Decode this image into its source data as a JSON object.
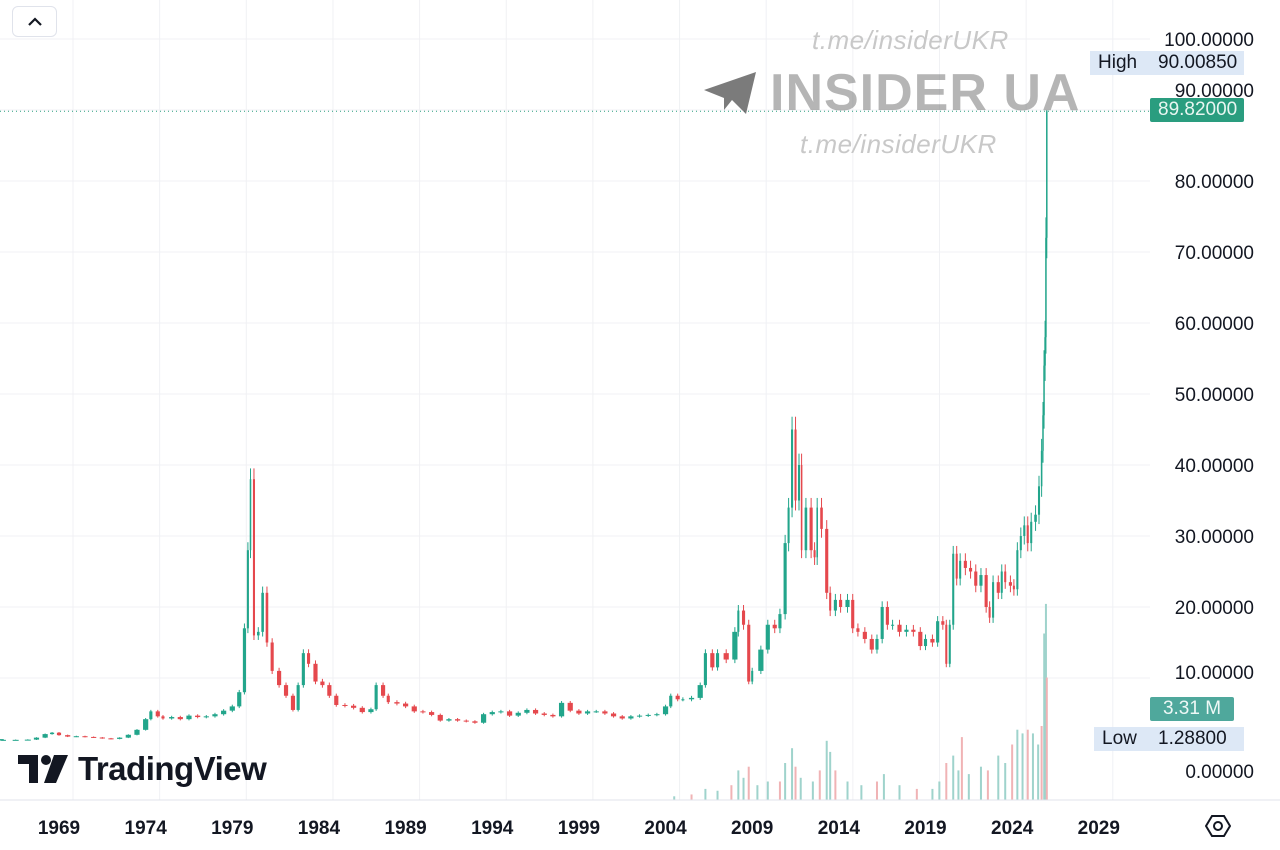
{
  "header": {
    "collapse_button": "collapse-up"
  },
  "watermark": {
    "url_top": "t.me/insiderUKR",
    "brand": "INSIDER UA",
    "url_bottom": "t.me/insiderUKR",
    "icon": "telegram-plane-icon"
  },
  "logo": {
    "text": "TradingView"
  },
  "price_scale_labels": {
    "high_label": "High",
    "high_value": "90.00850",
    "last_price": "89.82000",
    "volume_value": "3.31 M",
    "low_label": "Low",
    "low_value": "1.28800"
  },
  "colors": {
    "up": "#22a58b",
    "down": "#e5484d",
    "last_price_bg": "#2a9d7f",
    "volume_bg": "#4fa89c",
    "grid": "#f0f1f4",
    "volume_up": "#9fd3cc",
    "volume_down": "#f0b3b5"
  },
  "chart_data": {
    "type": "candlestick",
    "title": "",
    "xlabel": "",
    "ylabel": "",
    "x_ticks": [
      "1969",
      "1974",
      "1979",
      "1984",
      "1989",
      "1994",
      "1999",
      "2004",
      "2009",
      "2014",
      "2019",
      "2024",
      "2029"
    ],
    "y_ticks": [
      "100.00000",
      "90.00000",
      "80.00000",
      "70.00000",
      "60.00000",
      "50.00000",
      "40.00000",
      "30.00000",
      "20.00000",
      "10.00000",
      "0.00000"
    ],
    "y_tick_values": [
      100,
      90,
      80,
      70,
      60,
      50,
      40,
      30,
      20,
      10,
      0
    ],
    "xlim": [
      1965.6,
      2031.5
    ],
    "ylim": [
      -7.4,
      105.5
    ],
    "grid": true,
    "high": 90.0085,
    "low": 1.288,
    "last": 89.82,
    "series_close": [
      [
        1965.8,
        1.29
      ],
      [
        1966.5,
        1.29
      ],
      [
        1967.2,
        1.32
      ],
      [
        1967.7,
        1.6
      ],
      [
        1968.2,
        2.1
      ],
      [
        1968.6,
        2.3
      ],
      [
        1969.0,
        1.95
      ],
      [
        1969.5,
        1.75
      ],
      [
        1970.0,
        1.8
      ],
      [
        1970.5,
        1.7
      ],
      [
        1971.0,
        1.62
      ],
      [
        1971.5,
        1.5
      ],
      [
        1972.0,
        1.42
      ],
      [
        1972.5,
        1.6
      ],
      [
        1973.0,
        2.0
      ],
      [
        1973.5,
        2.7
      ],
      [
        1974.0,
        4.2
      ],
      [
        1974.3,
        5.3
      ],
      [
        1974.7,
        4.6
      ],
      [
        1975.0,
        4.3
      ],
      [
        1975.5,
        4.5
      ],
      [
        1976.0,
        4.2
      ],
      [
        1976.5,
        4.7
      ],
      [
        1977.0,
        4.5
      ],
      [
        1977.5,
        4.6
      ],
      [
        1978.0,
        4.9
      ],
      [
        1978.5,
        5.4
      ],
      [
        1979.0,
        6.0
      ],
      [
        1979.4,
        8.0
      ],
      [
        1979.7,
        17.0
      ],
      [
        1979.9,
        28.0
      ],
      [
        1980.05,
        38.0
      ],
      [
        1980.25,
        16.0
      ],
      [
        1980.5,
        16.5
      ],
      [
        1980.75,
        22.0
      ],
      [
        1981.0,
        15.0
      ],
      [
        1981.3,
        11.0
      ],
      [
        1981.7,
        9.0
      ],
      [
        1982.1,
        7.5
      ],
      [
        1982.5,
        5.5
      ],
      [
        1982.8,
        9.0
      ],
      [
        1983.1,
        13.5
      ],
      [
        1983.4,
        12.0
      ],
      [
        1983.8,
        9.5
      ],
      [
        1984.2,
        9.0
      ],
      [
        1984.6,
        7.5
      ],
      [
        1985.0,
        6.2
      ],
      [
        1985.5,
        6.1
      ],
      [
        1986.0,
        5.8
      ],
      [
        1986.5,
        5.2
      ],
      [
        1987.0,
        5.6
      ],
      [
        1987.3,
        9.0
      ],
      [
        1987.7,
        7.5
      ],
      [
        1988.0,
        6.6
      ],
      [
        1988.5,
        6.4
      ],
      [
        1989.0,
        6.0
      ],
      [
        1989.5,
        5.3
      ],
      [
        1990.0,
        5.2
      ],
      [
        1990.5,
        4.8
      ],
      [
        1991.0,
        4.0
      ],
      [
        1991.5,
        4.2
      ],
      [
        1992.0,
        4.0
      ],
      [
        1992.5,
        3.9
      ],
      [
        1993.0,
        3.7
      ],
      [
        1993.5,
        4.9
      ],
      [
        1994.0,
        5.2
      ],
      [
        1994.5,
        5.3
      ],
      [
        1995.0,
        4.7
      ],
      [
        1995.5,
        5.1
      ],
      [
        1996.0,
        5.5
      ],
      [
        1996.5,
        5.0
      ],
      [
        1997.0,
        4.8
      ],
      [
        1997.5,
        4.6
      ],
      [
        1998.0,
        6.5
      ],
      [
        1998.5,
        5.4
      ],
      [
        1999.0,
        5.0
      ],
      [
        1999.5,
        5.3
      ],
      [
        2000.0,
        5.3
      ],
      [
        2000.5,
        5.0
      ],
      [
        2001.0,
        4.6
      ],
      [
        2001.5,
        4.3
      ],
      [
        2002.0,
        4.6
      ],
      [
        2002.5,
        4.7
      ],
      [
        2003.0,
        4.8
      ],
      [
        2003.5,
        4.9
      ],
      [
        2004.0,
        6.0
      ],
      [
        2004.3,
        7.5
      ],
      [
        2004.7,
        7.0
      ],
      [
        2005.0,
        7.0
      ],
      [
        2005.5,
        7.2
      ],
      [
        2006.0,
        9.0
      ],
      [
        2006.3,
        13.5
      ],
      [
        2006.7,
        11.5
      ],
      [
        2007.0,
        13.5
      ],
      [
        2007.5,
        12.6
      ],
      [
        2008.0,
        16.5
      ],
      [
        2008.2,
        19.5
      ],
      [
        2008.5,
        17.5
      ],
      [
        2008.8,
        9.5
      ],
      [
        2009.0,
        11.0
      ],
      [
        2009.5,
        14.0
      ],
      [
        2009.9,
        17.5
      ],
      [
        2010.3,
        17.0
      ],
      [
        2010.6,
        19.0
      ],
      [
        2010.9,
        29.0
      ],
      [
        2011.1,
        34.0
      ],
      [
        2011.3,
        45.0
      ],
      [
        2011.5,
        35.0
      ],
      [
        2011.7,
        40.0
      ],
      [
        2011.85,
        28.0
      ],
      [
        2012.1,
        34.0
      ],
      [
        2012.4,
        28.0
      ],
      [
        2012.6,
        27.0
      ],
      [
        2012.75,
        34.0
      ],
      [
        2013.0,
        31.0
      ],
      [
        2013.3,
        22.0
      ],
      [
        2013.5,
        19.5
      ],
      [
        2013.8,
        21.0
      ],
      [
        2014.1,
        20.0
      ],
      [
        2014.5,
        21.0
      ],
      [
        2014.8,
        17.0
      ],
      [
        2015.1,
        16.5
      ],
      [
        2015.5,
        15.5
      ],
      [
        2015.9,
        14.0
      ],
      [
        2016.2,
        15.5
      ],
      [
        2016.5,
        20.0
      ],
      [
        2016.8,
        17.5
      ],
      [
        2017.1,
        17.5
      ],
      [
        2017.5,
        16.5
      ],
      [
        2017.9,
        16.8
      ],
      [
        2018.3,
        16.5
      ],
      [
        2018.7,
        14.5
      ],
      [
        2019.0,
        15.5
      ],
      [
        2019.4,
        15.0
      ],
      [
        2019.7,
        18.0
      ],
      [
        2020.0,
        17.5
      ],
      [
        2020.2,
        12.0
      ],
      [
        2020.4,
        17.5
      ],
      [
        2020.6,
        27.5
      ],
      [
        2020.8,
        24.0
      ],
      [
        2021.0,
        26.5
      ],
      [
        2021.3,
        25.5
      ],
      [
        2021.6,
        25.0
      ],
      [
        2021.9,
        23.0
      ],
      [
        2022.2,
        24.5
      ],
      [
        2022.5,
        20.0
      ],
      [
        2022.7,
        18.5
      ],
      [
        2022.9,
        23.5
      ],
      [
        2023.2,
        22.0
      ],
      [
        2023.4,
        25.0
      ],
      [
        2023.6,
        23.5
      ],
      [
        2023.9,
        23.0
      ],
      [
        2024.1,
        22.5
      ],
      [
        2024.3,
        28.0
      ],
      [
        2024.5,
        30.0
      ],
      [
        2024.7,
        31.5
      ],
      [
        2024.9,
        29.0
      ],
      [
        2025.1,
        32.0
      ],
      [
        2025.35,
        33.0
      ],
      [
        2025.55,
        37.0
      ],
      [
        2025.7,
        42.0
      ],
      [
        2025.78,
        47.0
      ],
      [
        2025.84,
        54.0
      ],
      [
        2025.9,
        58.0
      ],
      [
        2025.95,
        72.0
      ],
      [
        2026.0,
        89.82
      ]
    ],
    "volume_millions": [
      [
        2004.5,
        0.1
      ],
      [
        2005.5,
        0.15
      ],
      [
        2006.3,
        0.3
      ],
      [
        2007.0,
        0.25
      ],
      [
        2007.8,
        0.4
      ],
      [
        2008.2,
        0.8
      ],
      [
        2008.5,
        0.6
      ],
      [
        2008.8,
        0.9
      ],
      [
        2009.3,
        0.4
      ],
      [
        2009.9,
        0.5
      ],
      [
        2010.6,
        0.5
      ],
      [
        2010.9,
        1.0
      ],
      [
        2011.3,
        1.4
      ],
      [
        2011.5,
        0.9
      ],
      [
        2011.8,
        0.6
      ],
      [
        2012.5,
        0.5
      ],
      [
        2012.9,
        0.8
      ],
      [
        2013.3,
        1.6
      ],
      [
        2013.5,
        1.3
      ],
      [
        2013.8,
        0.8
      ],
      [
        2014.5,
        0.5
      ],
      [
        2015.3,
        0.4
      ],
      [
        2016.2,
        0.5
      ],
      [
        2016.6,
        0.7
      ],
      [
        2017.5,
        0.4
      ],
      [
        2018.5,
        0.3
      ],
      [
        2019.4,
        0.3
      ],
      [
        2019.8,
        0.5
      ],
      [
        2020.2,
        1.0
      ],
      [
        2020.6,
        1.2
      ],
      [
        2020.9,
        0.8
      ],
      [
        2021.1,
        1.7
      ],
      [
        2021.5,
        0.7
      ],
      [
        2022.2,
        0.9
      ],
      [
        2022.6,
        0.8
      ],
      [
        2023.2,
        1.2
      ],
      [
        2023.6,
        1.0
      ],
      [
        2024.0,
        1.5
      ],
      [
        2024.3,
        1.9
      ],
      [
        2024.6,
        1.8
      ],
      [
        2024.9,
        1.9
      ],
      [
        2025.2,
        1.8
      ],
      [
        2025.5,
        1.5
      ],
      [
        2025.7,
        2.0
      ],
      [
        2025.85,
        4.5
      ],
      [
        2025.95,
        5.3
      ],
      [
        2026.0,
        3.31
      ]
    ]
  }
}
